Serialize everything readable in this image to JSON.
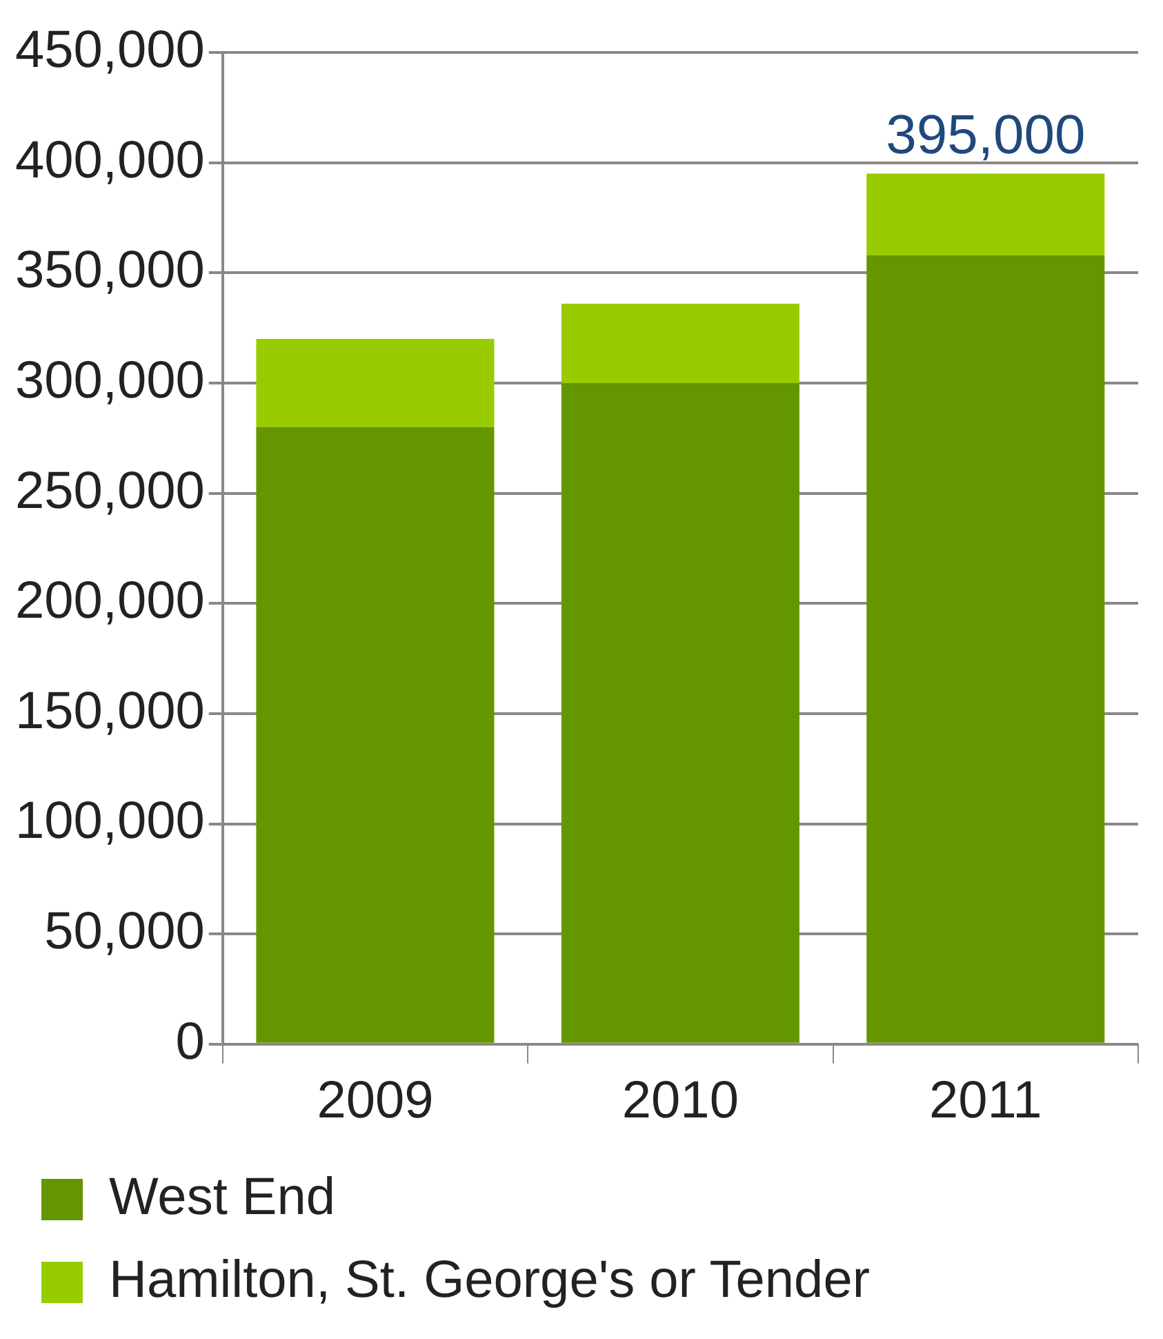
{
  "chart_data": {
    "type": "bar",
    "stacked": true,
    "categories": [
      "2009",
      "2010",
      "2011"
    ],
    "series": [
      {
        "name": "West End",
        "color": "#649600",
        "values": [
          280000,
          300000,
          358000
        ]
      },
      {
        "name": "Hamilton, St. George's or Tender",
        "color": "#99cc00",
        "values": [
          40000,
          36000,
          37000
        ]
      }
    ],
    "ylim": [
      0,
      450000
    ],
    "yticks": [
      {
        "value": 0,
        "label": "0"
      },
      {
        "value": 50000,
        "label": "50,000"
      },
      {
        "value": 100000,
        "label": "100,000"
      },
      {
        "value": 150000,
        "label": "150,000"
      },
      {
        "value": 200000,
        "label": "200,000"
      },
      {
        "value": 250000,
        "label": "250,000"
      },
      {
        "value": 300000,
        "label": "300,000"
      },
      {
        "value": 350000,
        "label": "350,000"
      },
      {
        "value": 400000,
        "label": "400,000"
      },
      {
        "value": 450000,
        "label": "450,000"
      }
    ],
    "grid": "y",
    "legend": "bottom",
    "annotations": [
      {
        "text": "395,000",
        "x": "2011",
        "y": 395000
      }
    ]
  }
}
